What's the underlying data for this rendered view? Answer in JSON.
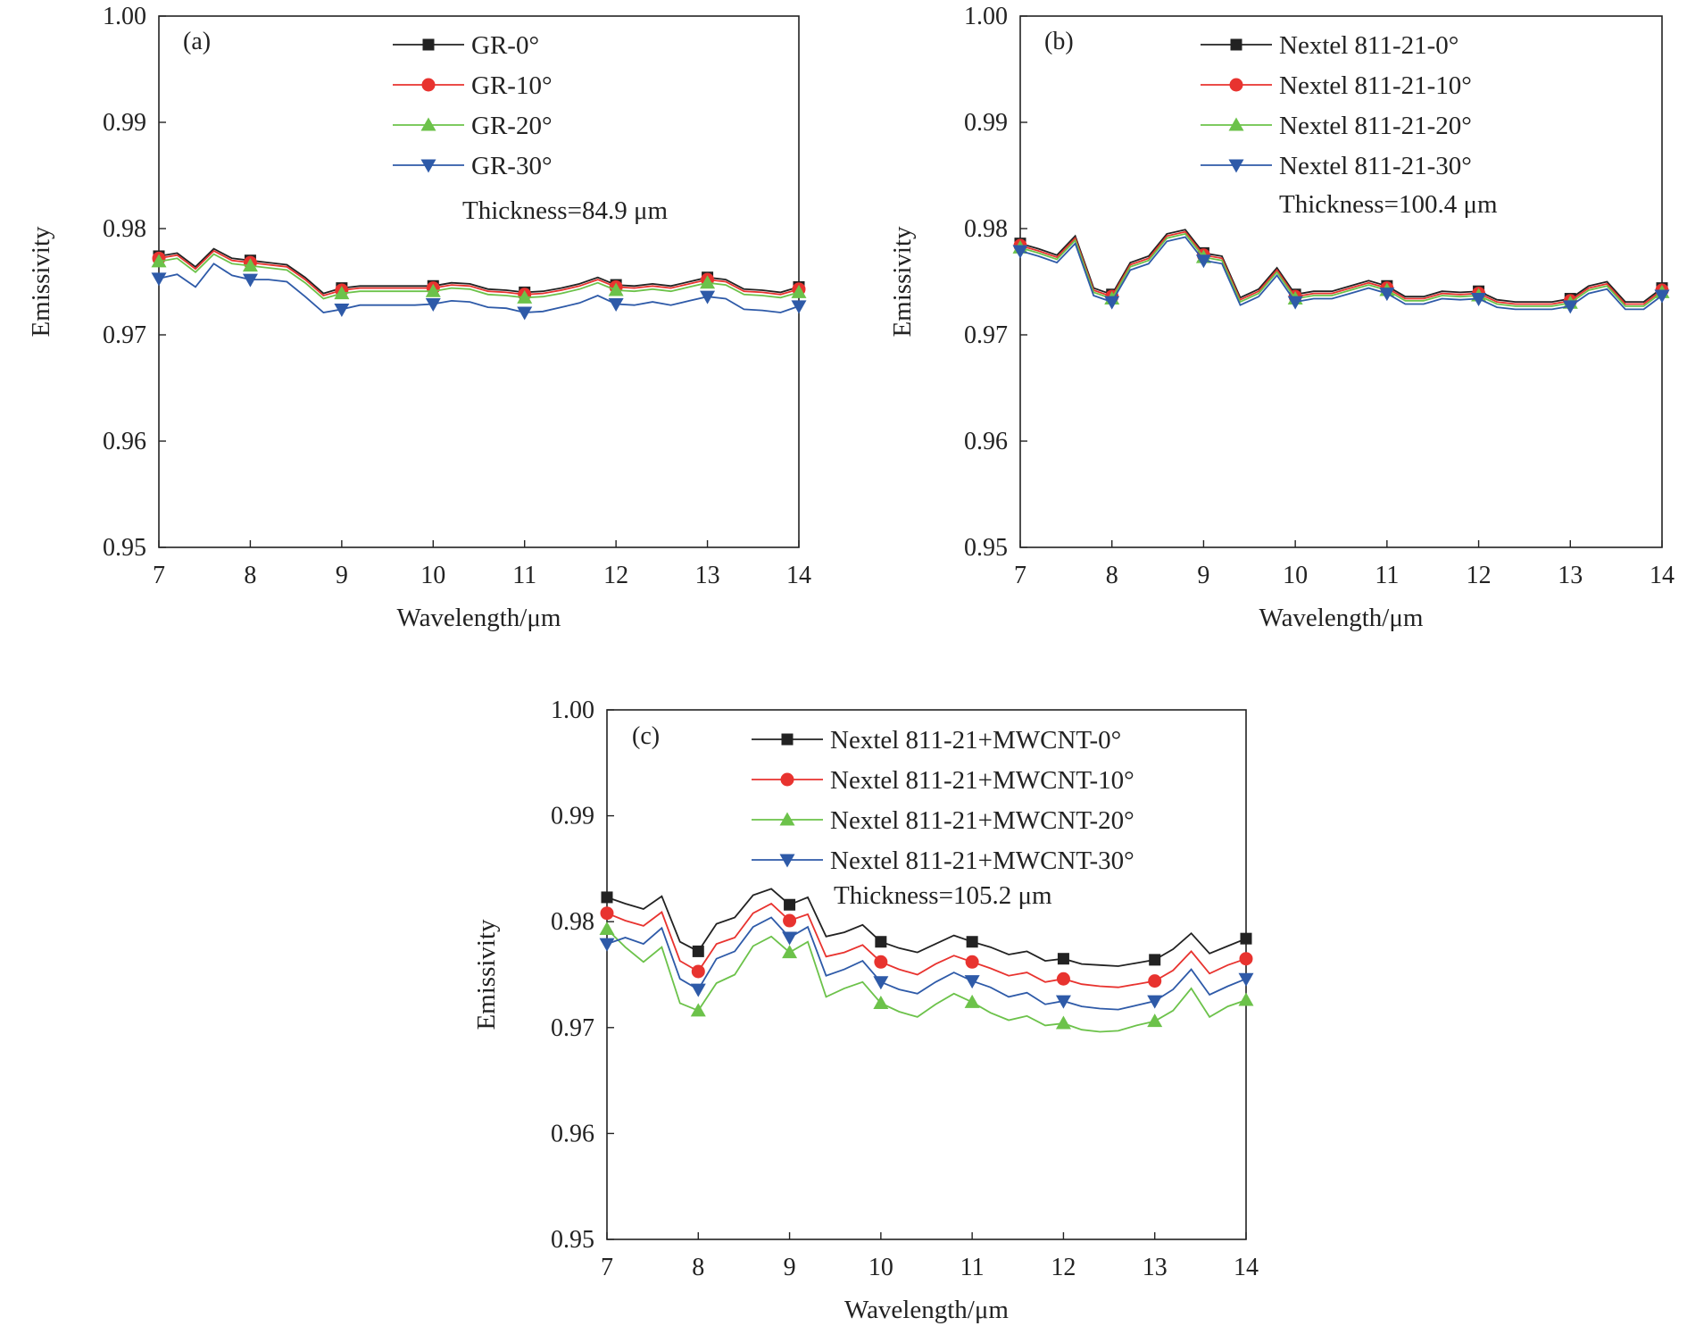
{
  "chart_data": [
    {
      "type": "line",
      "panel_label": "(a)",
      "xlabel": "Wavelength/μm",
      "ylabel": "Emissivity",
      "xlim": [
        7,
        14
      ],
      "ylim": [
        0.95,
        1.0
      ],
      "xticks": [
        7,
        8,
        9,
        10,
        11,
        12,
        13,
        14
      ],
      "yticks": [
        "0.95",
        "0.96",
        "0.97",
        "0.98",
        "0.99",
        "1.00"
      ],
      "annotation": "Thickness=84.9 μm",
      "legend_position": "top-center",
      "x": [
        7.0,
        7.2,
        7.4,
        7.6,
        7.8,
        8.0,
        8.2,
        8.4,
        8.6,
        8.8,
        9.0,
        9.2,
        9.4,
        9.6,
        9.8,
        10.0,
        10.2,
        10.4,
        10.6,
        10.8,
        11.0,
        11.2,
        11.4,
        11.6,
        11.8,
        12.0,
        12.2,
        12.4,
        12.6,
        12.8,
        13.0,
        13.2,
        13.4,
        13.6,
        13.8,
        14.0
      ],
      "markers_at": [
        7,
        8,
        9,
        10,
        11,
        12,
        13,
        14
      ],
      "series": [
        {
          "name": "GR-0°",
          "color": "#222222",
          "marker": "square",
          "values": [
            0.9774,
            0.9777,
            0.9764,
            0.9781,
            0.9772,
            0.977,
            0.9768,
            0.9766,
            0.9754,
            0.9739,
            0.9744,
            0.9746,
            0.9746,
            0.9746,
            0.9746,
            0.9746,
            0.9749,
            0.9748,
            0.9743,
            0.9742,
            0.974,
            0.9741,
            0.9744,
            0.9748,
            0.9754,
            0.9747,
            0.9746,
            0.9748,
            0.9746,
            0.975,
            0.9754,
            0.9752,
            0.9743,
            0.9742,
            0.974,
            0.9745
          ]
        },
        {
          "name": "GR-10°",
          "color": "#e8332f",
          "marker": "circle",
          "values": [
            0.9772,
            0.9775,
            0.9762,
            0.9779,
            0.977,
            0.9768,
            0.9766,
            0.9764,
            0.9752,
            0.9737,
            0.9742,
            0.9744,
            0.9744,
            0.9744,
            0.9744,
            0.9744,
            0.9747,
            0.9746,
            0.9741,
            0.974,
            0.9738,
            0.9739,
            0.9742,
            0.9746,
            0.9752,
            0.9745,
            0.9744,
            0.9746,
            0.9744,
            0.9748,
            0.9752,
            0.975,
            0.9741,
            0.974,
            0.9738,
            0.9743
          ]
        },
        {
          "name": "GR-20°",
          "color": "#6cc24a",
          "marker": "triangle-up",
          "values": [
            0.9769,
            0.9772,
            0.9759,
            0.9776,
            0.9767,
            0.9765,
            0.9763,
            0.9761,
            0.9749,
            0.9734,
            0.9739,
            0.9741,
            0.9741,
            0.9741,
            0.9741,
            0.9741,
            0.9744,
            0.9743,
            0.9738,
            0.9737,
            0.9735,
            0.9736,
            0.9739,
            0.9743,
            0.9749,
            0.9742,
            0.9741,
            0.9743,
            0.9741,
            0.9745,
            0.9749,
            0.9747,
            0.9738,
            0.9737,
            0.9735,
            0.974
          ]
        },
        {
          "name": "GR-30°",
          "color": "#2e5aa8",
          "marker": "triangle-down",
          "values": [
            0.9753,
            0.9757,
            0.9745,
            0.9767,
            0.9756,
            0.9752,
            0.9752,
            0.975,
            0.9736,
            0.9721,
            0.9724,
            0.9728,
            0.9728,
            0.9728,
            0.9728,
            0.9729,
            0.9732,
            0.9731,
            0.9726,
            0.9725,
            0.9721,
            0.9722,
            0.9726,
            0.973,
            0.9737,
            0.9729,
            0.9728,
            0.9731,
            0.9728,
            0.9732,
            0.9736,
            0.9734,
            0.9724,
            0.9723,
            0.9721,
            0.9727
          ]
        }
      ]
    },
    {
      "type": "line",
      "panel_label": "(b)",
      "xlabel": "Wavelength/μm",
      "ylabel": "Emissivity",
      "xlim": [
        7,
        14
      ],
      "ylim": [
        0.95,
        1.0
      ],
      "xticks": [
        7,
        8,
        9,
        10,
        11,
        12,
        13,
        14
      ],
      "yticks": [
        "0.95",
        "0.96",
        "0.97",
        "0.98",
        "0.99",
        "1.00"
      ],
      "annotation": "Thickness=100.4 μm",
      "legend_position": "top-right",
      "x": [
        7.0,
        7.2,
        7.4,
        7.6,
        7.8,
        8.0,
        8.2,
        8.4,
        8.6,
        8.8,
        9.0,
        9.2,
        9.4,
        9.6,
        9.8,
        10.0,
        10.2,
        10.4,
        10.6,
        10.8,
        11.0,
        11.2,
        11.4,
        11.6,
        11.8,
        12.0,
        12.2,
        12.4,
        12.6,
        12.8,
        13.0,
        13.2,
        13.4,
        13.6,
        13.8,
        14.0
      ],
      "markers_at": [
        7,
        8,
        9,
        10,
        11,
        12,
        13,
        14
      ],
      "series": [
        {
          "name": "Nextel 811-21-0°",
          "color": "#222222",
          "marker": "square",
          "values": [
            0.9786,
            0.9781,
            0.9775,
            0.9793,
            0.9744,
            0.9738,
            0.9768,
            0.9774,
            0.9795,
            0.9799,
            0.9777,
            0.9774,
            0.9735,
            0.9743,
            0.9763,
            0.9738,
            0.9741,
            0.9741,
            0.9746,
            0.9751,
            0.9746,
            0.9736,
            0.9736,
            0.9741,
            0.974,
            0.9741,
            0.9733,
            0.9731,
            0.9731,
            0.9731,
            0.9734,
            0.9746,
            0.975,
            0.9731,
            0.9731,
            0.9744
          ]
        },
        {
          "name": "Nextel 811-21-10°",
          "color": "#e8332f",
          "marker": "circle",
          "values": [
            0.9784,
            0.9779,
            0.9773,
            0.9791,
            0.9742,
            0.9736,
            0.9766,
            0.9772,
            0.9793,
            0.9797,
            0.9775,
            0.9772,
            0.9733,
            0.9741,
            0.9761,
            0.9736,
            0.9739,
            0.9739,
            0.9744,
            0.9749,
            0.9744,
            0.9734,
            0.9734,
            0.9739,
            0.9738,
            0.9739,
            0.9731,
            0.9729,
            0.9729,
            0.9729,
            0.9732,
            0.9744,
            0.9748,
            0.9729,
            0.9729,
            0.9742
          ]
        },
        {
          "name": "Nextel 811-21-20°",
          "color": "#6cc24a",
          "marker": "triangle-up",
          "values": [
            0.9782,
            0.9777,
            0.9771,
            0.9789,
            0.974,
            0.9734,
            0.9764,
            0.977,
            0.9791,
            0.9795,
            0.9773,
            0.977,
            0.9731,
            0.9739,
            0.9759,
            0.9734,
            0.9737,
            0.9737,
            0.9742,
            0.9747,
            0.9742,
            0.9732,
            0.9732,
            0.9737,
            0.9736,
            0.9737,
            0.9729,
            0.9727,
            0.9727,
            0.9727,
            0.973,
            0.9742,
            0.9746,
            0.9727,
            0.9727,
            0.974
          ]
        },
        {
          "name": "Nextel 811-21-30°",
          "color": "#2e5aa8",
          "marker": "triangle-down",
          "values": [
            0.9779,
            0.9774,
            0.9768,
            0.9786,
            0.9737,
            0.9731,
            0.9761,
            0.9767,
            0.9788,
            0.9792,
            0.977,
            0.9767,
            0.9728,
            0.9736,
            0.9756,
            0.9731,
            0.9734,
            0.9734,
            0.9739,
            0.9744,
            0.9739,
            0.9729,
            0.9729,
            0.9734,
            0.9733,
            0.9734,
            0.9726,
            0.9724,
            0.9724,
            0.9724,
            0.9727,
            0.9739,
            0.9743,
            0.9724,
            0.9724,
            0.9737
          ]
        }
      ]
    },
    {
      "type": "line",
      "panel_label": "(c)",
      "xlabel": "Wavelength/μm",
      "ylabel": "Emissivity",
      "xlim": [
        7,
        14
      ],
      "ylim": [
        0.95,
        1.0
      ],
      "xticks": [
        7,
        8,
        9,
        10,
        11,
        12,
        13,
        14
      ],
      "yticks": [
        "0.95",
        "0.96",
        "0.97",
        "0.98",
        "0.99",
        "1.00"
      ],
      "annotation": "Thickness=105.2 μm",
      "legend_position": "top-center",
      "x": [
        7.0,
        7.2,
        7.4,
        7.6,
        7.8,
        8.0,
        8.2,
        8.4,
        8.6,
        8.8,
        9.0,
        9.2,
        9.4,
        9.6,
        9.8,
        10.0,
        10.2,
        10.4,
        10.6,
        10.8,
        11.0,
        11.2,
        11.4,
        11.6,
        11.8,
        12.0,
        12.2,
        12.4,
        12.6,
        12.8,
        13.0,
        13.2,
        13.4,
        13.6,
        13.8,
        14.0
      ],
      "markers_at": [
        7,
        8,
        9,
        10,
        11,
        12,
        13,
        14
      ],
      "series": [
        {
          "name": "Nextel 811-21+MWCNT-0°",
          "color": "#222222",
          "marker": "square",
          "values": [
            0.9823,
            0.9817,
            0.9812,
            0.9824,
            0.9781,
            0.9772,
            0.9798,
            0.9804,
            0.9825,
            0.9831,
            0.9816,
            0.9823,
            0.9786,
            0.979,
            0.9797,
            0.9781,
            0.9775,
            0.9771,
            0.9779,
            0.9787,
            0.9781,
            0.9776,
            0.9769,
            0.9772,
            0.9763,
            0.9765,
            0.976,
            0.9759,
            0.9758,
            0.9761,
            0.9764,
            0.9774,
            0.9789,
            0.977,
            0.9777,
            0.9784
          ]
        },
        {
          "name": "Nextel 811-21+MWCNT-10°",
          "color": "#e8332f",
          "marker": "circle",
          "values": [
            0.9808,
            0.9801,
            0.9796,
            0.9809,
            0.9763,
            0.9753,
            0.9779,
            0.9785,
            0.9808,
            0.9817,
            0.9801,
            0.9807,
            0.9767,
            0.9771,
            0.9778,
            0.9762,
            0.9755,
            0.975,
            0.976,
            0.9768,
            0.9762,
            0.9756,
            0.9749,
            0.9752,
            0.9743,
            0.9746,
            0.9741,
            0.9739,
            0.9738,
            0.9741,
            0.9744,
            0.9754,
            0.9772,
            0.9751,
            0.9759,
            0.9765
          ]
        },
        {
          "name": "Nextel 811-21+MWCNT-20°",
          "color": "#6cc24a",
          "marker": "triangle-up",
          "values": [
            0.9793,
            0.9776,
            0.9762,
            0.9776,
            0.9723,
            0.9716,
            0.9742,
            0.975,
            0.9777,
            0.9786,
            0.9771,
            0.9781,
            0.9729,
            0.9737,
            0.9743,
            0.9723,
            0.9715,
            0.971,
            0.9722,
            0.9732,
            0.9724,
            0.9714,
            0.9707,
            0.9711,
            0.9702,
            0.9704,
            0.9698,
            0.9696,
            0.9697,
            0.9702,
            0.9706,
            0.9716,
            0.9737,
            0.971,
            0.972,
            0.9726
          ]
        },
        {
          "name": "Nextel 811-21+MWCNT-30°",
          "color": "#2e5aa8",
          "marker": "triangle-down",
          "values": [
            0.9779,
            0.9785,
            0.9779,
            0.9794,
            0.9746,
            0.9736,
            0.9765,
            0.9772,
            0.9795,
            0.9804,
            0.9785,
            0.9795,
            0.9749,
            0.9755,
            0.9763,
            0.9743,
            0.9736,
            0.9732,
            0.9743,
            0.9752,
            0.9744,
            0.9738,
            0.9729,
            0.9733,
            0.9722,
            0.9725,
            0.972,
            0.9718,
            0.9717,
            0.9721,
            0.9725,
            0.9736,
            0.9755,
            0.9731,
            0.9739,
            0.9746
          ]
        }
      ]
    }
  ]
}
